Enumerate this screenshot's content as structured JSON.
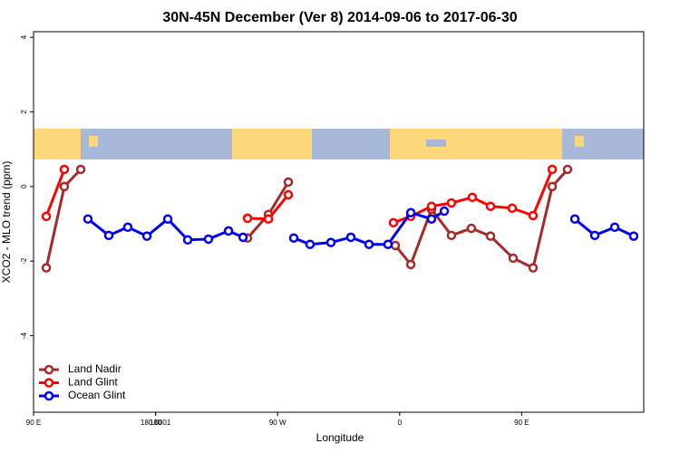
{
  "chart_data": {
    "type": "line",
    "title": "30N-45N December (Ver 8)   2014-09-06 to 2017-06-30",
    "x_label": "Longitude",
    "y_label": "XCO2 - MLO trend (ppm)",
    "xlim": [
      90,
      540
    ],
    "xticks": [
      {
        "value": 90,
        "label": "90 E"
      },
      180,
      {
        "value": 270,
        "label": "90 W"
      },
      {
        "value": 360,
        "label": "0"
      },
      {
        "value": 450,
        "label": "90 E"
      },
      180.0001
    ],
    "ylim": [
      -6.05,
      4.15
    ],
    "yticks": [
      -4,
      -2,
      0,
      2,
      4
    ],
    "legend": "bottom-left",
    "series": [
      {
        "name": "Land Nadir",
        "color": "#a52a2a",
        "x": [
          99.4,
          112.7,
          124.8,
          186,
          247.8,
          263.2,
          277.9,
          317,
          356.8,
          368.2,
          383.5,
          398.2,
          412.9,
          427,
          443.7,
          458.4,
          472.5,
          483.8
        ],
        "values": [
          -2.18,
          0.0,
          0.46,
          null,
          -1.38,
          -0.75,
          0.12,
          null,
          -1.58,
          -2.09,
          -0.61,
          -1.31,
          -1.12,
          -1.33,
          -1.92,
          -2.18,
          0.0,
          0.46
        ]
      },
      {
        "name": "Land Glint",
        "color": "#ff0000",
        "x": [
          99.4,
          112.7,
          180,
          247.8,
          263.2,
          277.9,
          317,
          355.4,
          368.2,
          383.5,
          398.2,
          413.6,
          427,
          443,
          458.4,
          472.5
        ],
        "values": [
          -0.8,
          0.46,
          null,
          -0.85,
          -0.87,
          -0.22,
          null,
          -0.97,
          -0.8,
          -0.53,
          -0.44,
          -0.29,
          -0.53,
          -0.58,
          -0.78,
          0.46
        ]
      },
      {
        "name": "Ocean Glint",
        "color": "#0000ee",
        "x": [
          130.1,
          145.5,
          159.5,
          173.6,
          189,
          203.7,
          219,
          233.8,
          244.5,
          263,
          281.9,
          293.9,
          309.3,
          324,
          337.4,
          351.4,
          368.2,
          383.5,
          392.9,
          441,
          489.2,
          503.9,
          518.6,
          532.6
        ],
        "values": [
          -0.87,
          -1.31,
          -1.09,
          -1.33,
          -0.87,
          -1.43,
          -1.41,
          -1.19,
          -1.36,
          null,
          -1.38,
          -1.55,
          -1.5,
          -1.36,
          -1.55,
          -1.55,
          -0.7,
          -0.87,
          -0.66,
          null,
          -0.87,
          -1.31,
          -1.09,
          -1.33
        ]
      }
    ]
  }
}
